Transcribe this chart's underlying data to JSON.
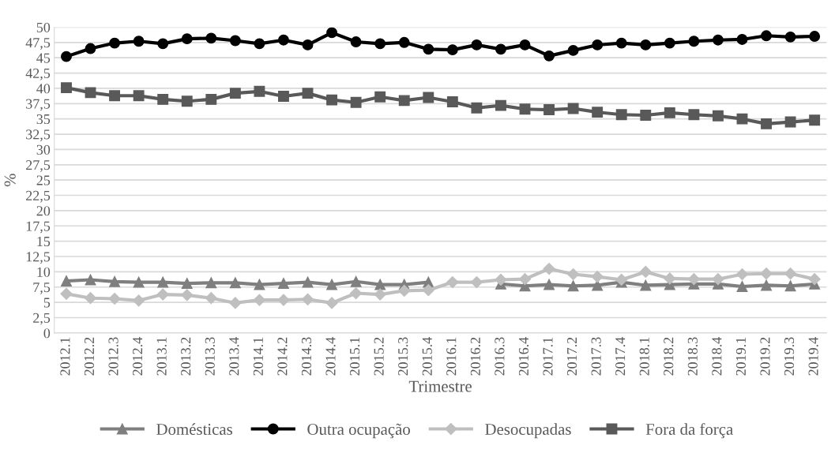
{
  "chart_data": {
    "type": "line",
    "xlabel": "Trimestre",
    "ylabel": "%",
    "categories": [
      "2012.1",
      "2012.2",
      "2012.3",
      "2012.4",
      "2013.1",
      "2013.2",
      "2013.3",
      "2013.4",
      "2014.1",
      "2014.2",
      "2014.3",
      "2014.4",
      "2015.1",
      "2015.2",
      "2015.3",
      "2015.4",
      "2016.1",
      "2016.2",
      "2016.3",
      "2016.4",
      "2017.1",
      "2017.2",
      "2017.3",
      "2017.4",
      "2018.1",
      "2018.2",
      "2018.3",
      "2018.4",
      "2019.1",
      "2019.2",
      "2019.3",
      "2019.4"
    ],
    "series": [
      {
        "name": "Domésticas",
        "color": "#7f7f7f",
        "marker": "triangle",
        "values": [
          8.5,
          8.7,
          8.4,
          8.3,
          8.3,
          8.1,
          8.2,
          8.2,
          7.9,
          8.1,
          8.3,
          7.9,
          8.4,
          7.9,
          7.9,
          8.3,
          null,
          null,
          8.0,
          7.7,
          7.9,
          7.7,
          7.8,
          8.3,
          7.8,
          7.9,
          8.0,
          8.0,
          7.6,
          7.8,
          7.7,
          8.0
        ]
      },
      {
        "name": "Outra ocupação",
        "color": "#000000",
        "marker": "circle",
        "values": [
          45.2,
          46.5,
          47.4,
          47.7,
          47.3,
          48.1,
          48.2,
          47.8,
          47.3,
          47.9,
          47.1,
          49.1,
          47.6,
          47.3,
          47.5,
          46.4,
          46.3,
          47.1,
          46.4,
          47.1,
          45.3,
          46.2,
          47.1,
          47.4,
          47.1,
          47.4,
          47.7,
          47.9,
          48.0,
          48.6,
          48.4,
          48.5
        ]
      },
      {
        "name": "Desocupadas",
        "color": "#bfbfbf",
        "marker": "diamond",
        "values": [
          6.4,
          5.7,
          5.6,
          5.3,
          6.3,
          6.2,
          5.7,
          4.9,
          5.4,
          5.4,
          5.5,
          4.9,
          6.5,
          6.3,
          6.9,
          7.0,
          8.3,
          8.3,
          8.7,
          8.8,
          10.5,
          9.6,
          9.2,
          8.7,
          10.0,
          8.9,
          8.8,
          8.8,
          9.6,
          9.7,
          9.7,
          8.8
        ]
      },
      {
        "name": "Fora da força",
        "color": "#595959",
        "marker": "square",
        "values": [
          40.1,
          39.3,
          38.8,
          38.8,
          38.2,
          37.9,
          38.2,
          39.2,
          39.5,
          38.7,
          39.2,
          38.1,
          37.7,
          38.6,
          38.0,
          38.5,
          37.8,
          36.8,
          37.2,
          36.6,
          36.5,
          36.7,
          36.1,
          35.7,
          35.6,
          36.0,
          35.7,
          35.5,
          35.0,
          34.2,
          34.5,
          34.8
        ]
      }
    ],
    "ylim": [
      0,
      50
    ],
    "yticks": [
      0,
      {
        "value": 2.5,
        "label": "2,5"
      },
      5,
      {
        "value": 7.5,
        "label": "7,5"
      },
      10,
      {
        "value": 12.5,
        "label": "12,5"
      },
      15,
      {
        "value": 17.5,
        "label": "17,5"
      },
      20,
      {
        "value": 22.5,
        "label": "22,5"
      },
      25,
      {
        "value": 27.5,
        "label": "27,5"
      },
      30,
      {
        "value": 32.5,
        "label": "32,5"
      },
      35,
      {
        "value": 37.5,
        "label": "37,5"
      },
      40,
      {
        "value": 42.5,
        "label": "42,5"
      },
      45,
      {
        "value": 47.5,
        "label": "47,5"
      },
      50
    ],
    "grid": "y",
    "legend": "bottom",
    "line_style": "solid"
  }
}
